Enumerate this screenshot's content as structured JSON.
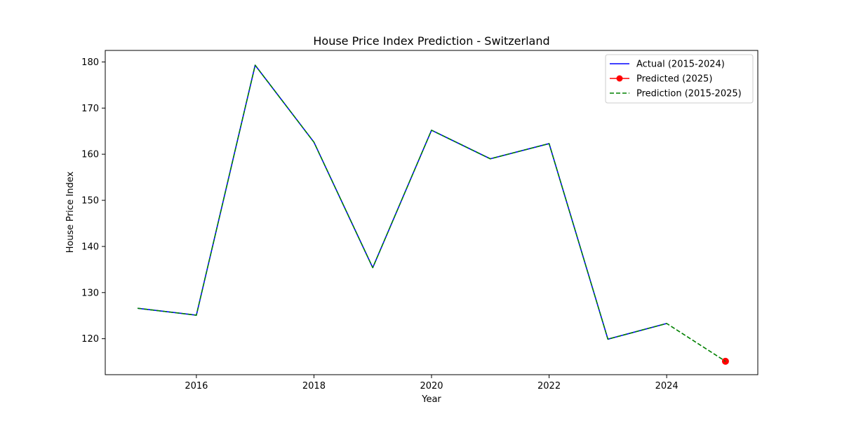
{
  "chart_data": {
    "type": "line",
    "title": "House Price Index Prediction - Switzerland",
    "xlabel": "Year",
    "ylabel": "House Price Index",
    "xlim": [
      2014.45,
      2025.55
    ],
    "ylim": [
      112.2,
      182.5
    ],
    "x_ticks": [
      2016,
      2018,
      2020,
      2022,
      2024
    ],
    "y_ticks": [
      120,
      130,
      140,
      150,
      160,
      170,
      180
    ],
    "grid": false,
    "legend_position": "top-right",
    "series": [
      {
        "name": "Actual (2015-2024)",
        "color": "#0000ff",
        "style": "solid",
        "x": [
          2015,
          2016,
          2017,
          2018,
          2019,
          2020,
          2021,
          2022,
          2023,
          2024
        ],
        "y": [
          126.6,
          125.1,
          179.3,
          162.6,
          135.4,
          165.2,
          159.0,
          162.3,
          119.9,
          123.3
        ]
      },
      {
        "name": "Predicted (2025)",
        "color": "#ff0000",
        "style": "solid-marker",
        "marker": "circle",
        "x": [
          2025
        ],
        "y": [
          115.1
        ]
      },
      {
        "name": "Prediction (2015-2025)",
        "color": "#008000",
        "style": "dashed",
        "x": [
          2015,
          2016,
          2017,
          2018,
          2019,
          2020,
          2021,
          2022,
          2023,
          2024,
          2025
        ],
        "y": [
          126.6,
          125.1,
          179.3,
          162.6,
          135.4,
          165.2,
          159.0,
          162.3,
          119.9,
          123.3,
          115.1
        ]
      }
    ]
  }
}
